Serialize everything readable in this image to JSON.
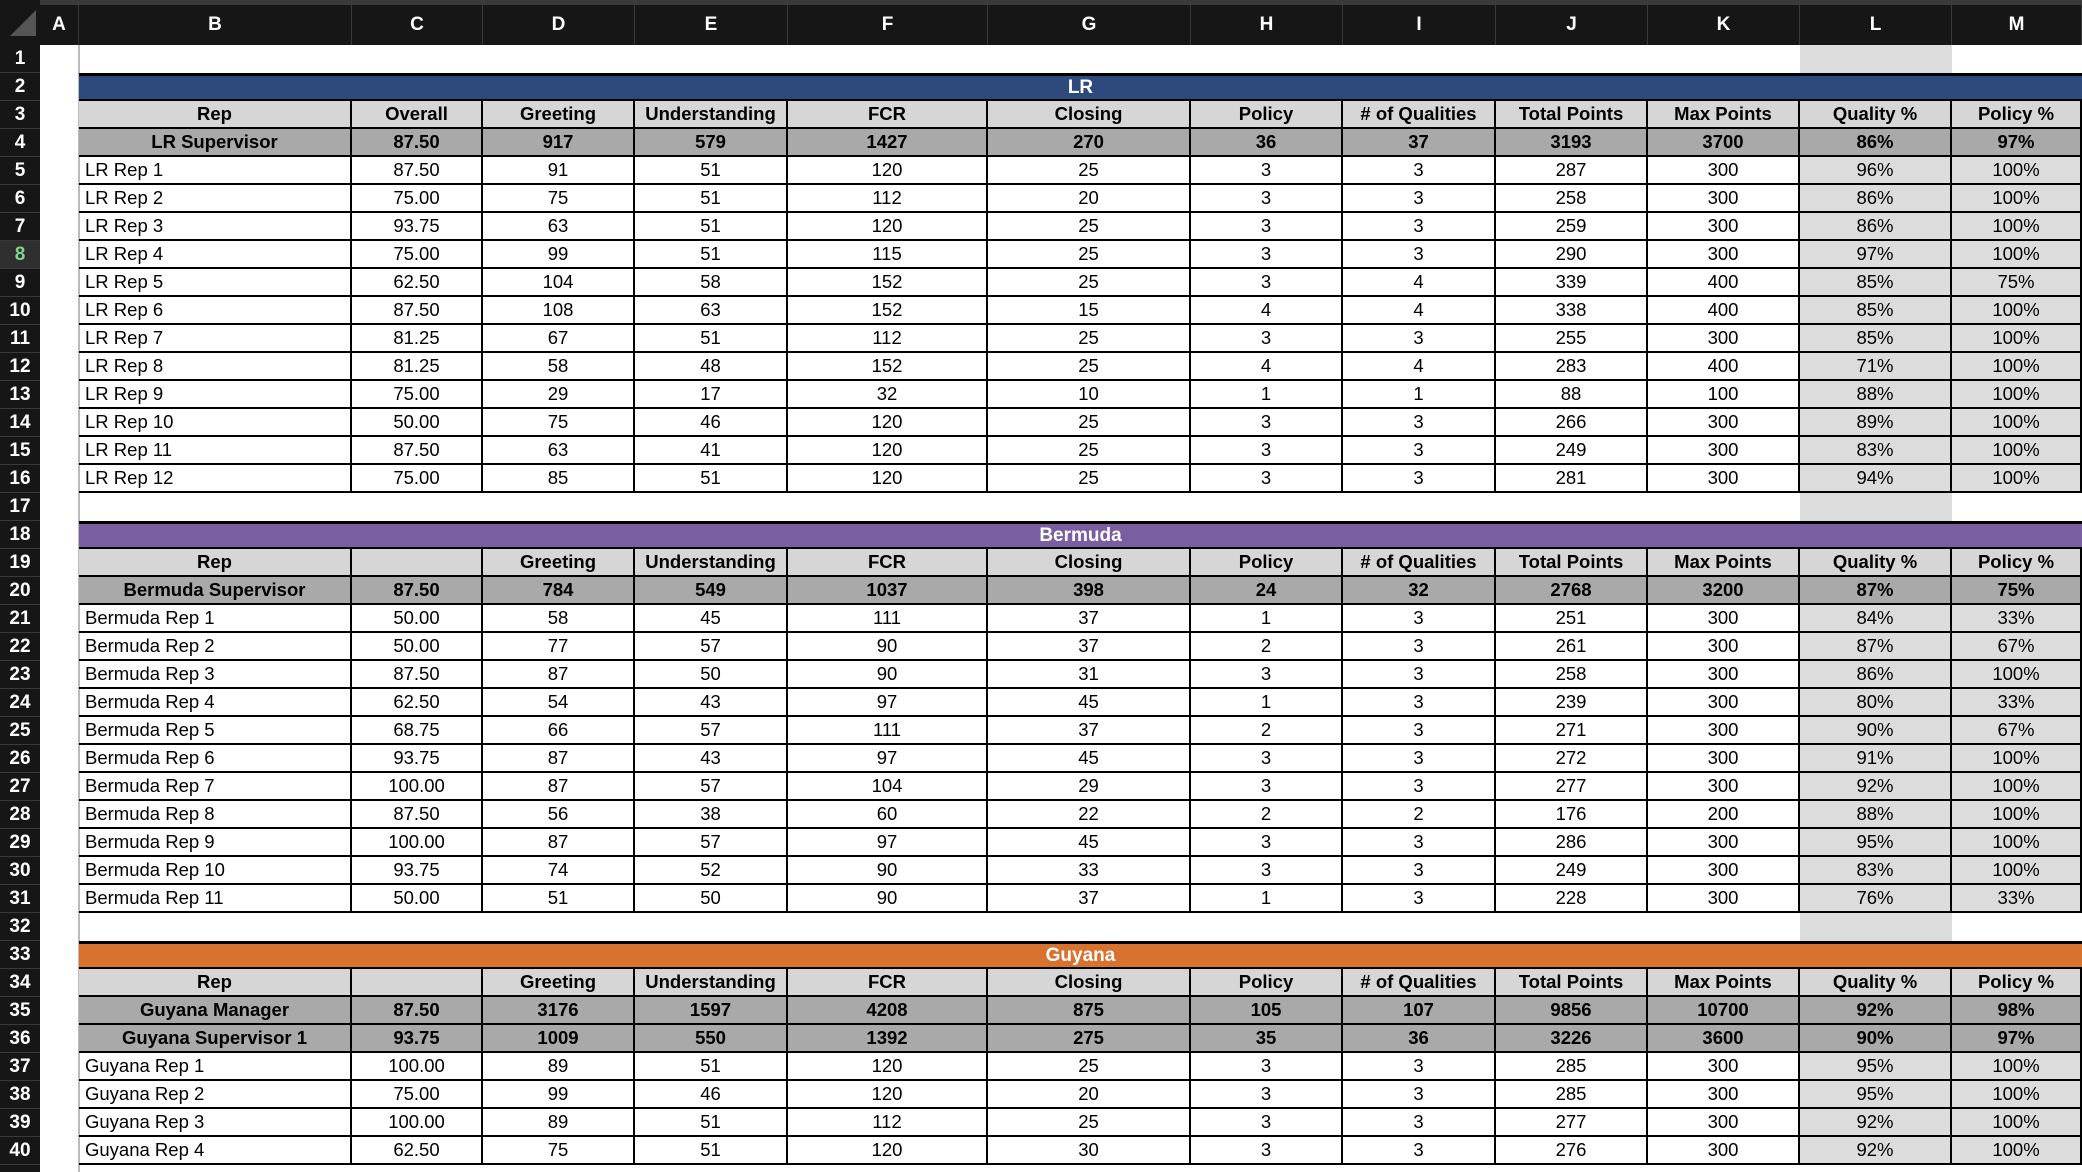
{
  "columns": [
    "A",
    "B",
    "C",
    "D",
    "E",
    "F",
    "G",
    "H",
    "I",
    "J",
    "K",
    "L",
    "M"
  ],
  "row_numbers": [
    "1",
    "2",
    "3",
    "4",
    "5",
    "6",
    "7",
    "8",
    "9",
    "10",
    "11",
    "12",
    "13",
    "14",
    "15",
    "16",
    "17",
    "18",
    "19",
    "20",
    "21",
    "22",
    "23",
    "24",
    "25",
    "26",
    "27",
    "28",
    "29",
    "30",
    "31",
    "32",
    "33",
    "34",
    "35",
    "36",
    "37",
    "38",
    "39",
    "40"
  ],
  "selected_row": "8",
  "colors": {
    "lr_band": "#2e4a7d",
    "bermuda_band": "#7a5ea2",
    "guyana_band": "#d8722f",
    "header_gray": "#d6d6d6",
    "supervisor_gray": "#a9a9a9",
    "quality_col_gray": "#dcdcdc"
  },
  "sections": [
    {
      "title": "LR",
      "color": "#2e4a7d",
      "header": [
        "Rep",
        "Overall",
        "Greeting",
        "Understanding",
        "FCR",
        "Closing",
        "Policy",
        "# of Qualities",
        "Total Points",
        "Max Points",
        "Quality %",
        "Policy %"
      ],
      "supervisors": [
        [
          "LR Supervisor",
          "87.50",
          "917",
          "579",
          "1427",
          "270",
          "36",
          "37",
          "3193",
          "3700",
          "86%",
          "97%"
        ]
      ],
      "rows": [
        [
          "LR Rep 1",
          "87.50",
          "91",
          "51",
          "120",
          "25",
          "3",
          "3",
          "287",
          "300",
          "96%",
          "100%"
        ],
        [
          "LR Rep 2",
          "75.00",
          "75",
          "51",
          "112",
          "20",
          "3",
          "3",
          "258",
          "300",
          "86%",
          "100%"
        ],
        [
          "LR Rep 3",
          "93.75",
          "63",
          "51",
          "120",
          "25",
          "3",
          "3",
          "259",
          "300",
          "86%",
          "100%"
        ],
        [
          "LR Rep 4",
          "75.00",
          "99",
          "51",
          "115",
          "25",
          "3",
          "3",
          "290",
          "300",
          "97%",
          "100%"
        ],
        [
          "LR Rep 5",
          "62.50",
          "104",
          "58",
          "152",
          "25",
          "3",
          "4",
          "339",
          "400",
          "85%",
          "75%"
        ],
        [
          "LR Rep 6",
          "87.50",
          "108",
          "63",
          "152",
          "15",
          "4",
          "4",
          "338",
          "400",
          "85%",
          "100%"
        ],
        [
          "LR Rep 7",
          "81.25",
          "67",
          "51",
          "112",
          "25",
          "3",
          "3",
          "255",
          "300",
          "85%",
          "100%"
        ],
        [
          "LR Rep 8",
          "81.25",
          "58",
          "48",
          "152",
          "25",
          "4",
          "4",
          "283",
          "400",
          "71%",
          "100%"
        ],
        [
          "LR Rep 9",
          "75.00",
          "29",
          "17",
          "32",
          "10",
          "1",
          "1",
          "88",
          "100",
          "88%",
          "100%"
        ],
        [
          "LR Rep 10",
          "50.00",
          "75",
          "46",
          "120",
          "25",
          "3",
          "3",
          "266",
          "300",
          "89%",
          "100%"
        ],
        [
          "LR Rep 11",
          "87.50",
          "63",
          "41",
          "120",
          "25",
          "3",
          "3",
          "249",
          "300",
          "83%",
          "100%"
        ],
        [
          "LR Rep 12",
          "75.00",
          "85",
          "51",
          "120",
          "25",
          "3",
          "3",
          "281",
          "300",
          "94%",
          "100%"
        ]
      ]
    },
    {
      "title": "Bermuda",
      "color": "#7a5ea2",
      "header": [
        "Rep",
        "",
        "Greeting",
        "Understanding",
        "FCR",
        "Closing",
        "Policy",
        "# of Qualities",
        "Total Points",
        "Max Points",
        "Quality %",
        "Policy %"
      ],
      "supervisors": [
        [
          "Bermuda Supervisor",
          "87.50",
          "784",
          "549",
          "1037",
          "398",
          "24",
          "32",
          "2768",
          "3200",
          "87%",
          "75%"
        ]
      ],
      "rows": [
        [
          "Bermuda Rep 1",
          "50.00",
          "58",
          "45",
          "111",
          "37",
          "1",
          "3",
          "251",
          "300",
          "84%",
          "33%"
        ],
        [
          "Bermuda Rep 2",
          "50.00",
          "77",
          "57",
          "90",
          "37",
          "2",
          "3",
          "261",
          "300",
          "87%",
          "67%"
        ],
        [
          "Bermuda Rep 3",
          "87.50",
          "87",
          "50",
          "90",
          "31",
          "3",
          "3",
          "258",
          "300",
          "86%",
          "100%"
        ],
        [
          "Bermuda Rep 4",
          "62.50",
          "54",
          "43",
          "97",
          "45",
          "1",
          "3",
          "239",
          "300",
          "80%",
          "33%"
        ],
        [
          "Bermuda Rep 5",
          "68.75",
          "66",
          "57",
          "111",
          "37",
          "2",
          "3",
          "271",
          "300",
          "90%",
          "67%"
        ],
        [
          "Bermuda Rep 6",
          "93.75",
          "87",
          "43",
          "97",
          "45",
          "3",
          "3",
          "272",
          "300",
          "91%",
          "100%"
        ],
        [
          "Bermuda Rep 7",
          "100.00",
          "87",
          "57",
          "104",
          "29",
          "3",
          "3",
          "277",
          "300",
          "92%",
          "100%"
        ],
        [
          "Bermuda Rep 8",
          "87.50",
          "56",
          "38",
          "60",
          "22",
          "2",
          "2",
          "176",
          "200",
          "88%",
          "100%"
        ],
        [
          "Bermuda Rep 9",
          "100.00",
          "87",
          "57",
          "97",
          "45",
          "3",
          "3",
          "286",
          "300",
          "95%",
          "100%"
        ],
        [
          "Bermuda Rep 10",
          "93.75",
          "74",
          "52",
          "90",
          "33",
          "3",
          "3",
          "249",
          "300",
          "83%",
          "100%"
        ],
        [
          "Bermuda Rep 11",
          "50.00",
          "51",
          "50",
          "90",
          "37",
          "1",
          "3",
          "228",
          "300",
          "76%",
          "33%"
        ]
      ]
    },
    {
      "title": "Guyana",
      "color": "#d8722f",
      "header": [
        "Rep",
        "",
        "Greeting",
        "Understanding",
        "FCR",
        "Closing",
        "Policy",
        "# of Qualities",
        "Total Points",
        "Max Points",
        "Quality %",
        "Policy %"
      ],
      "supervisors": [
        [
          "Guyana Manager",
          "87.50",
          "3176",
          "1597",
          "4208",
          "875",
          "105",
          "107",
          "9856",
          "10700",
          "92%",
          "98%"
        ],
        [
          "Guyana Supervisor 1",
          "93.75",
          "1009",
          "550",
          "1392",
          "275",
          "35",
          "36",
          "3226",
          "3600",
          "90%",
          "97%"
        ]
      ],
      "rows": [
        [
          "Guyana Rep 1",
          "100.00",
          "89",
          "51",
          "120",
          "25",
          "3",
          "3",
          "285",
          "300",
          "95%",
          "100%"
        ],
        [
          "Guyana Rep 2",
          "75.00",
          "99",
          "46",
          "120",
          "20",
          "3",
          "3",
          "285",
          "300",
          "95%",
          "100%"
        ],
        [
          "Guyana Rep 3",
          "100.00",
          "89",
          "51",
          "112",
          "25",
          "3",
          "3",
          "277",
          "300",
          "92%",
          "100%"
        ],
        [
          "Guyana Rep 4",
          "62.50",
          "75",
          "51",
          "120",
          "30",
          "3",
          "3",
          "276",
          "300",
          "92%",
          "100%"
        ]
      ]
    }
  ]
}
